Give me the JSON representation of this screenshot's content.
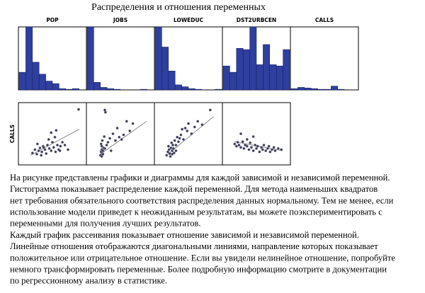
{
  "title": "Распределения и отношения переменных",
  "chart_data": [
    {
      "type": "histogram",
      "title": "POP",
      "values": [
        28,
        100,
        44,
        25,
        14,
        10,
        2,
        1,
        2,
        0
      ],
      "ylim": [
        0,
        100
      ],
      "color": "#2f3f9f"
    },
    {
      "type": "histogram",
      "title": "JOBS",
      "values": [
        100,
        12,
        4,
        2,
        1,
        0,
        0,
        0,
        1,
        0
      ],
      "ylim": [
        0,
        100
      ],
      "color": "#2f3f9f"
    },
    {
      "type": "histogram",
      "title": "LOWEDUC",
      "values": [
        100,
        68,
        30,
        8,
        5,
        2,
        1,
        0,
        0,
        1
      ],
      "ylim": [
        0,
        100
      ],
      "color": "#2f3f9f"
    },
    {
      "type": "histogram",
      "title": "DST2URBCEN",
      "values": [
        38,
        28,
        66,
        64,
        100,
        40,
        72,
        40,
        38,
        64
      ],
      "ylim": [
        0,
        100
      ],
      "color": "#2f3f9f"
    },
    {
      "type": "histogram",
      "title": "CALLS",
      "values": [
        2,
        4,
        3,
        2,
        1,
        1,
        6,
        1,
        0,
        0
      ],
      "ylim": [
        0,
        100
      ],
      "color": "#2f3f9f"
    },
    {
      "type": "scatter",
      "ylabel": "CALLS",
      "xlim": [
        0,
        100
      ],
      "ylim": [
        0,
        100
      ],
      "color": "#3a3a55",
      "x": [
        18,
        22,
        25,
        28,
        30,
        33,
        35,
        38,
        40,
        42,
        45,
        48,
        50,
        52,
        55,
        58,
        60,
        63,
        26,
        32,
        44,
        54,
        62,
        70,
        75,
        48,
        56,
        66,
        92,
        36
      ],
      "y": [
        16,
        22,
        14,
        20,
        25,
        18,
        28,
        22,
        15,
        30,
        24,
        20,
        35,
        26,
        18,
        30,
        22,
        28,
        32,
        12,
        40,
        44,
        20,
        30,
        22,
        52,
        56,
        35,
        93,
        26
      ],
      "fit_x": [
        15,
        93
      ],
      "fit_y": [
        12,
        58
      ]
    },
    {
      "type": "scatter",
      "xlim": [
        0,
        100
      ],
      "ylim": [
        0,
        100
      ],
      "color": "#3a3a55",
      "x": [
        18,
        19,
        20,
        21,
        20,
        22,
        19,
        23,
        21,
        25,
        24,
        20,
        22,
        28,
        30,
        33,
        38,
        42,
        45,
        48,
        55,
        60,
        65,
        70,
        26,
        35,
        52,
        25
      ],
      "y": [
        12,
        18,
        22,
        15,
        28,
        20,
        32,
        25,
        38,
        24,
        45,
        10,
        14,
        30,
        35,
        42,
        50,
        38,
        60,
        44,
        48,
        72,
        55,
        68,
        88,
        20,
        40,
        92
      ],
      "fit_x": [
        18,
        92
      ],
      "fit_y": [
        14,
        72
      ]
    },
    {
      "type": "scatter",
      "xlim": [
        0,
        100
      ],
      "ylim": [
        0,
        100
      ],
      "color": "#3a3a55",
      "x": [
        15,
        17,
        19,
        20,
        22,
        24,
        25,
        27,
        18,
        21,
        23,
        26,
        28,
        30,
        32,
        34,
        36,
        38,
        40,
        42,
        45,
        48,
        50,
        55,
        60,
        65,
        72,
        85,
        24,
        30
      ],
      "y": [
        12,
        18,
        22,
        15,
        25,
        20,
        30,
        16,
        28,
        10,
        34,
        24,
        38,
        30,
        44,
        36,
        42,
        48,
        58,
        40,
        60,
        55,
        68,
        50,
        62,
        72,
        66,
        92,
        14,
        20
      ],
      "fit_x": [
        15,
        90
      ],
      "fit_y": [
        12,
        80
      ]
    },
    {
      "type": "scatter",
      "xlim": [
        0,
        100
      ],
      "ylim": [
        0,
        100
      ],
      "color": "#3a3a55",
      "x": [
        15,
        18,
        20,
        22,
        25,
        28,
        30,
        32,
        35,
        38,
        40,
        42,
        45,
        48,
        50,
        52,
        55,
        58,
        60,
        62,
        65,
        68,
        70,
        72,
        75,
        78,
        80,
        85,
        90,
        25,
        35,
        45
      ],
      "y": [
        32,
        28,
        35,
        30,
        26,
        36,
        24,
        30,
        28,
        22,
        34,
        26,
        20,
        30,
        24,
        28,
        18,
        26,
        22,
        30,
        20,
        24,
        28,
        18,
        22,
        26,
        20,
        24,
        22,
        50,
        40,
        45
      ],
      "fit_x": [
        15,
        92
      ],
      "fit_y": [
        36,
        20
      ]
    }
  ],
  "description": {
    "lines": [
      "На рисунке представлены графики и диаграммы для каждой зависимой и независимой переменной.",
      "Гистограмма показывает распределение каждой переменной. Для метода наименьших квадратов",
      "нет требования обязательного соответствия распределения данных нормальному. Тем не менее, если",
      "использование модели приведет к неожиданным результатам, вы можете поэкспериментировать с",
      "переменными для получения лучших результатов.",
      "Каждый график рассеивания показывает отношение зависимой и независимой переменной.",
      "Линейные отношения отображаются диагональными линиями, направление которых показывает",
      "положительное или отрицательное отношение. Если вы увидели нелинейное отношение, попробуйте",
      "немного трансформировать переменные. Более подробную информацию смотрите в документации",
      "по регрессионному анализу в статистике."
    ]
  }
}
